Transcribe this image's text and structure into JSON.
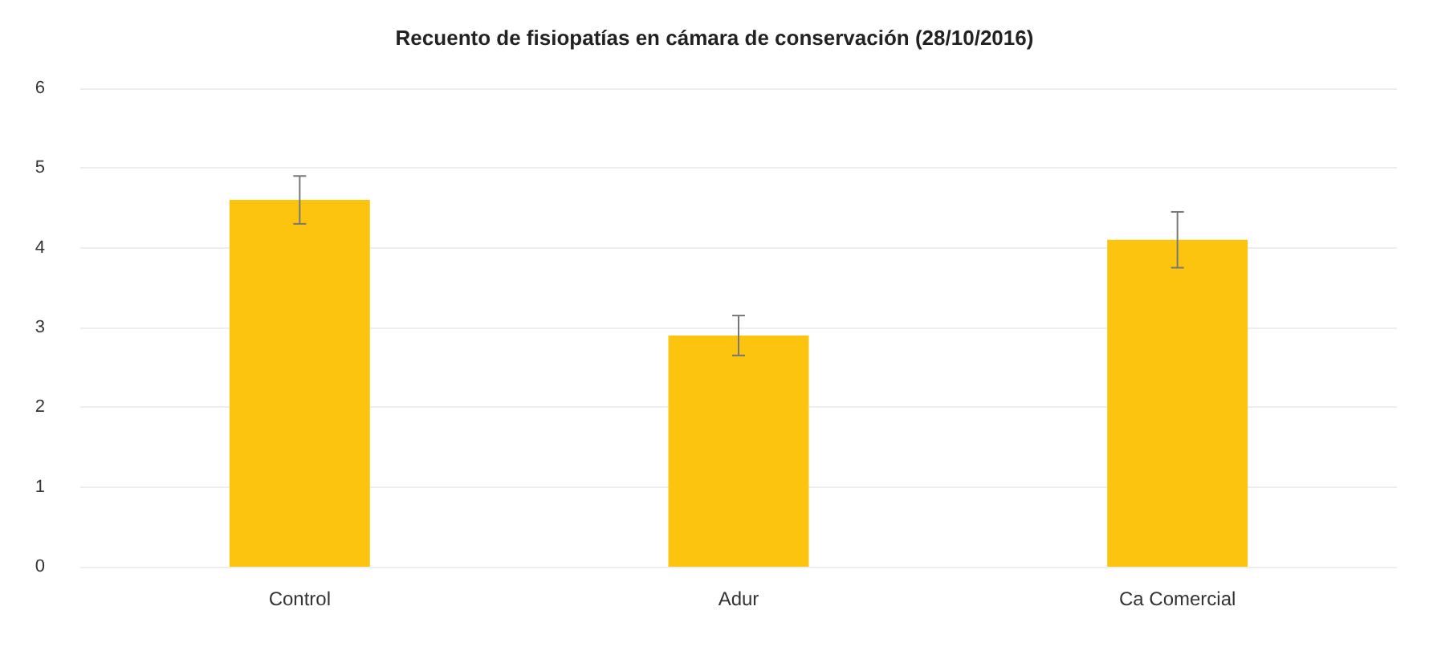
{
  "chart_data": {
    "type": "bar",
    "title": "Recuento de fisiopatías en cámara de conservación (28/10/2016)",
    "categories": [
      "Control",
      "Adur",
      "Ca Comercial"
    ],
    "values": [
      4.6,
      2.9,
      4.1
    ],
    "errors": [
      0.3,
      0.25,
      0.35
    ],
    "color": "#fcc30f",
    "ylim": [
      0,
      6
    ],
    "yticks": [
      0,
      1,
      2,
      3,
      4,
      5,
      6
    ],
    "grid": "y"
  }
}
